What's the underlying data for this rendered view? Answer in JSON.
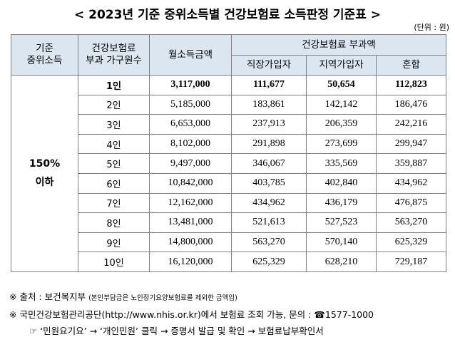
{
  "title": "< 2023년 기준 중위소득별 건강보험료 소득판정 기준표 >",
  "unit": "(단위 : 원)",
  "headers": {
    "median_income": [
      "기준",
      "중위소득"
    ],
    "household": [
      "건강보험료",
      "부과 가구원수"
    ],
    "monthly_income": "월소득금액",
    "premium": "건강보험료 부과액",
    "employee": "직장가입자",
    "regional": "지역가입자",
    "mixed": "혼합"
  },
  "group_label": [
    "150%",
    "이하"
  ],
  "rows": [
    {
      "members": "1인",
      "income": "3,117,000",
      "employee": "111,677",
      "regional": "50,654",
      "mixed": "112,823"
    },
    {
      "members": "2인",
      "income": "5,185,000",
      "employee": "183,861",
      "regional": "142,142",
      "mixed": "186,476"
    },
    {
      "members": "3인",
      "income": "6,653,000",
      "employee": "237,913",
      "regional": "206,359",
      "mixed": "242,216"
    },
    {
      "members": "4인",
      "income": "8,102,000",
      "employee": "291,898",
      "regional": "273,699",
      "mixed": "299,947"
    },
    {
      "members": "5인",
      "income": "9,497,000",
      "employee": "346,067",
      "regional": "335,569",
      "mixed": "359,887"
    },
    {
      "members": "6인",
      "income": "10,842,000",
      "employee": "403,785",
      "regional": "402,840",
      "mixed": "434,962"
    },
    {
      "members": "7인",
      "income": "12,162,000",
      "employee": "434,962",
      "regional": "436,179",
      "mixed": "476,875"
    },
    {
      "members": "8인",
      "income": "13,481,000",
      "employee": "521,613",
      "regional": "527,523",
      "mixed": "563,270"
    },
    {
      "members": "9인",
      "income": "14,800,000",
      "employee": "563,270",
      "regional": "570,140",
      "mixed": "625,329"
    },
    {
      "members": "10인",
      "income": "16,120,000",
      "employee": "625,329",
      "regional": "628,210",
      "mixed": "729,187"
    }
  ],
  "notes": {
    "source_prefix": "※ 출처 : 보건복지부",
    "source_note": "(본인부담금은 노인장기요양보험료를 제외한 금액임)",
    "contact": "※ 국민건강보험관리공단(http://www.nhis.or.kr)에서 보험료 조회 가능, 문의 : ☎1577-1000",
    "path": "☞ ‘민원요기요’ → ‘개인민원’ 클릭 → 증명서 발급 및 확인 → 보험료납부확인서"
  }
}
